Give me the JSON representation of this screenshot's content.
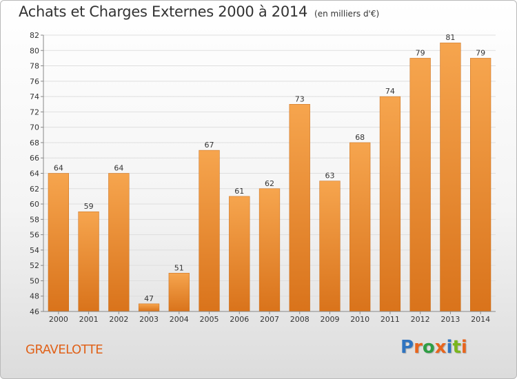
{
  "title": "Achats et Charges Externes 2000 à 2014",
  "subtitle": "(en milliers d'€)",
  "commune": "GRAVELOTTE",
  "logo": {
    "letters": [
      "P",
      "r",
      "o",
      "x",
      "i",
      "t",
      "i"
    ],
    "colors": [
      "#2f74c0",
      "#e8651d",
      "#2f9e44",
      "#e8651d",
      "#2f74c0",
      "#7ab51d",
      "#e8651d"
    ]
  },
  "colors": {
    "bar_top": "#f6a54e",
    "bar_bottom": "#d9731b",
    "commune": "#e0621a"
  },
  "chart_data": {
    "type": "bar",
    "categories": [
      "2000",
      "2001",
      "2002",
      "2003",
      "2004",
      "2005",
      "2006",
      "2007",
      "2008",
      "2009",
      "2010",
      "2011",
      "2012",
      "2013",
      "2014"
    ],
    "values": [
      64,
      59,
      64,
      47,
      51,
      67,
      61,
      62,
      73,
      63,
      68,
      74,
      79,
      81,
      79
    ],
    "data_labels": [
      "64",
      "59",
      "64",
      "47",
      "51",
      "67",
      "61",
      "62",
      "73",
      "63",
      "68",
      "74",
      "79",
      "81",
      "79"
    ],
    "title": "Achats et Charges Externes 2000 à 2014",
    "xlabel": "",
    "ylabel": "",
    "ylim": [
      46,
      82
    ],
    "yticks": [
      46,
      48,
      50,
      52,
      54,
      56,
      58,
      60,
      62,
      64,
      66,
      68,
      70,
      72,
      74,
      76,
      78,
      80,
      82
    ],
    "grid": true,
    "legend": "none"
  }
}
